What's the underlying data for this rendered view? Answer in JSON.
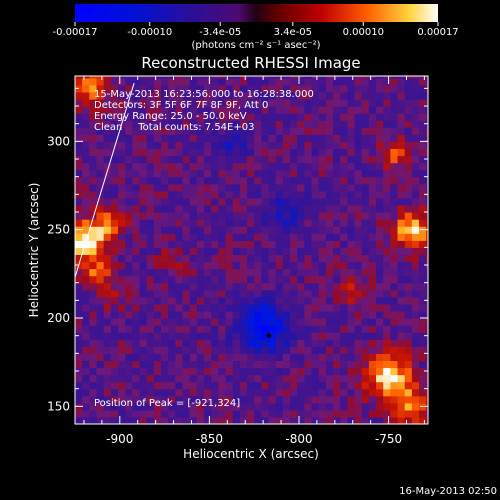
{
  "chart_data": {
    "type": "heatmap",
    "title": "Reconstructed RHESSI Image",
    "xlabel": "Heliocentric X (arcsec)",
    "ylabel": "Heliocentric Y (arcsec)",
    "xlim": [
      -925,
      -728
    ],
    "ylim": [
      140,
      337
    ],
    "xticks": [
      -900,
      -850,
      -800,
      -750
    ],
    "yticks": [
      150,
      200,
      250,
      300
    ],
    "xtick_labels": [
      "-900",
      "-850",
      "-800",
      "-750"
    ],
    "ytick_labels": [
      "150",
      "200",
      "250",
      "300"
    ],
    "colorbar": {
      "range": [
        -0.00017,
        0.00017
      ],
      "tick_values": [
        -0.00017,
        -0.0001,
        -3.4e-05,
        3.4e-05,
        0.0001,
        0.00017
      ],
      "tick_labels": [
        "-0.00017",
        "-0.00010",
        "-3.4e-05",
        "3.4e-05",
        "0.00010",
        "0.00017"
      ],
      "unit": "(photons cm⁻² s⁻¹ asec⁻²)"
    },
    "annotations": {
      "time_range": "15-May-2013 16:23:56.000 to 16:28:38.000",
      "detectors": "Detectors: 3F 5F 6F 7F 8F 9F, Att 0",
      "energy": "Energy Range: 25.0 - 50.0 keV",
      "clean": "Clean     Total counts: 7.54E+03",
      "peak": "Position of Peak = [-921,324]"
    },
    "peak_position": [
      -921,
      324
    ],
    "limb_line": [
      [
        -925,
        223
      ],
      [
        -892,
        333
      ]
    ],
    "hot_regions": [
      {
        "x": -916,
        "y": 331,
        "strength": 0.7,
        "r": 7
      },
      {
        "x": -919,
        "y": 244,
        "strength": 1.0,
        "r": 8
      },
      {
        "x": -906,
        "y": 254,
        "strength": 0.55,
        "r": 6
      },
      {
        "x": -913,
        "y": 225,
        "strength": 0.55,
        "r": 6
      },
      {
        "x": -904,
        "y": 212,
        "strength": 0.3,
        "r": 5
      },
      {
        "x": -750,
        "y": 168,
        "strength": 0.95,
        "r": 9
      },
      {
        "x": -738,
        "y": 150,
        "strength": 0.7,
        "r": 7
      },
      {
        "x": -737,
        "y": 250,
        "strength": 0.9,
        "r": 7
      },
      {
        "x": -746,
        "y": 293,
        "strength": 0.5,
        "r": 6
      },
      {
        "x": -770,
        "y": 216,
        "strength": 0.35,
        "r": 6
      },
      {
        "x": -871,
        "y": 232,
        "strength": 0.25,
        "r": 5
      },
      {
        "x": -838,
        "y": 292,
        "strength": 0.25,
        "r": 4
      }
    ],
    "cold_regions": [
      {
        "x": -820,
        "y": 195,
        "strength": -0.85,
        "r": 10
      },
      {
        "x": -838,
        "y": 298,
        "strength": -0.45,
        "r": 6
      },
      {
        "x": -808,
        "y": 260,
        "strength": -0.35,
        "r": 8
      }
    ],
    "marker": {
      "x": -817,
      "y": 190
    }
  },
  "footer": {
    "timestamp": "16-May-2013 02:50"
  }
}
